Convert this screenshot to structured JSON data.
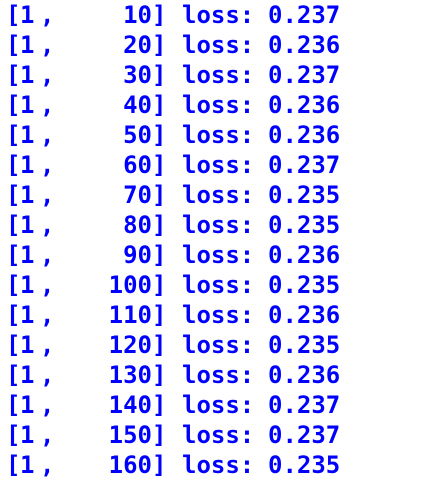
{
  "console": {
    "bracket_open": "[",
    "comma": ",",
    "bracket_close": "]",
    "label": "loss:",
    "rows": [
      {
        "epoch": "1",
        "iter": "10",
        "loss": "0.237"
      },
      {
        "epoch": "1",
        "iter": "20",
        "loss": "0.236"
      },
      {
        "epoch": "1",
        "iter": "30",
        "loss": "0.237"
      },
      {
        "epoch": "1",
        "iter": "40",
        "loss": "0.236"
      },
      {
        "epoch": "1",
        "iter": "50",
        "loss": "0.236"
      },
      {
        "epoch": "1",
        "iter": "60",
        "loss": "0.237"
      },
      {
        "epoch": "1",
        "iter": "70",
        "loss": "0.235"
      },
      {
        "epoch": "1",
        "iter": "80",
        "loss": "0.235"
      },
      {
        "epoch": "1",
        "iter": "90",
        "loss": "0.236"
      },
      {
        "epoch": "1",
        "iter": "100",
        "loss": "0.235"
      },
      {
        "epoch": "1",
        "iter": "110",
        "loss": "0.236"
      },
      {
        "epoch": "1",
        "iter": "120",
        "loss": "0.235"
      },
      {
        "epoch": "1",
        "iter": "130",
        "loss": "0.236"
      },
      {
        "epoch": "1",
        "iter": "140",
        "loss": "0.237"
      },
      {
        "epoch": "1",
        "iter": "150",
        "loss": "0.237"
      },
      {
        "epoch": "1",
        "iter": "160",
        "loss": "0.235"
      }
    ],
    "text_color": "#0000ff",
    "background_color": "#ffffff"
  }
}
